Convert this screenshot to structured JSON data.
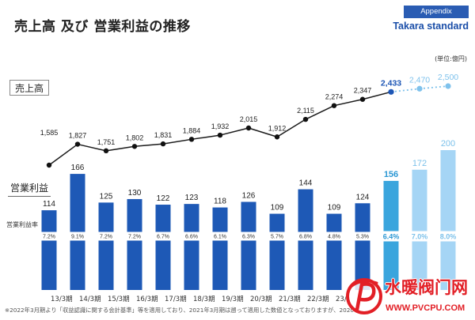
{
  "header": {
    "title": "売上高 及び 営業利益の推移",
    "badge": "Appendix",
    "logo": "Takara standard"
  },
  "footnote": "※2022年3月期より「収益認識に関する会計基準」等を適用しており、2021年3月期は遡って適用した数値となっておりますが、2020",
  "watermark": {
    "name": "水暖阀门网",
    "url": "WWW.PVCPU.COM"
  },
  "colors": {
    "accent": "#2a5cb3",
    "logo": "#1a4ea8",
    "watermark": "#e21f26"
  },
  "chart_data": {
    "type": "bar",
    "unit": "(単位:億円)",
    "categories": [
      "13/3期",
      "14/3期",
      "15/3期",
      "16/3期",
      "17/3期",
      "18/3期",
      "19/3期",
      "20/3期",
      "21/3期",
      "22/3期",
      "23/",
      "",
      "",
      "",
      ""
    ],
    "series": [
      {
        "name": "売上高",
        "type": "line",
        "values": [
          1585,
          1827,
          1751,
          1802,
          1831,
          1884,
          1932,
          2015,
          1912,
          2115,
          2274,
          2347,
          2433,
          2470,
          2500
        ]
      },
      {
        "name": "営業利益",
        "type": "bar",
        "values": [
          114,
          166,
          125,
          130,
          122,
          123,
          118,
          126,
          109,
          144,
          109,
          124,
          156,
          172,
          200
        ]
      },
      {
        "name": "営業利益率",
        "type": "label",
        "unit": "%",
        "values": [
          7.2,
          9.1,
          7.2,
          7.2,
          6.7,
          6.6,
          6.1,
          6.3,
          5.7,
          6.8,
          4.8,
          5.3,
          6.4,
          7.0,
          8.0
        ]
      }
    ],
    "bar_colors": [
      "#1e59b6",
      "#1e59b6",
      "#1e59b6",
      "#1e59b6",
      "#1e59b6",
      "#1e59b6",
      "#1e59b6",
      "#1e59b6",
      "#1e59b6",
      "#1e59b6",
      "#1e59b6",
      "#1e59b6",
      "#3aa5dd",
      "#a5d5f5",
      "#a5d5f5"
    ],
    "label_colors": [
      "#222222",
      "#222222",
      "#222222",
      "#222222",
      "#222222",
      "#222222",
      "#222222",
      "#222222",
      "#222222",
      "#222222",
      "#222222",
      "#222222",
      "#2b97d3",
      "#7cc1ea",
      "#7cc1ea"
    ],
    "point_colors": [
      "#111111",
      "#111111",
      "#111111",
      "#111111",
      "#111111",
      "#111111",
      "#111111",
      "#111111",
      "#111111",
      "#111111",
      "#111111",
      "#111111",
      "#1d56b5",
      "#7fc2ec",
      "#7fc2ec"
    ],
    "highlight": [
      false,
      false,
      false,
      false,
      false,
      false,
      false,
      false,
      false,
      false,
      false,
      false,
      true,
      true,
      true
    ],
    "dashed": [
      false,
      false,
      false,
      false,
      false,
      false,
      false,
      false,
      false,
      false,
      false,
      false,
      false,
      true,
      true
    ],
    "grid": false,
    "legend": "none"
  }
}
